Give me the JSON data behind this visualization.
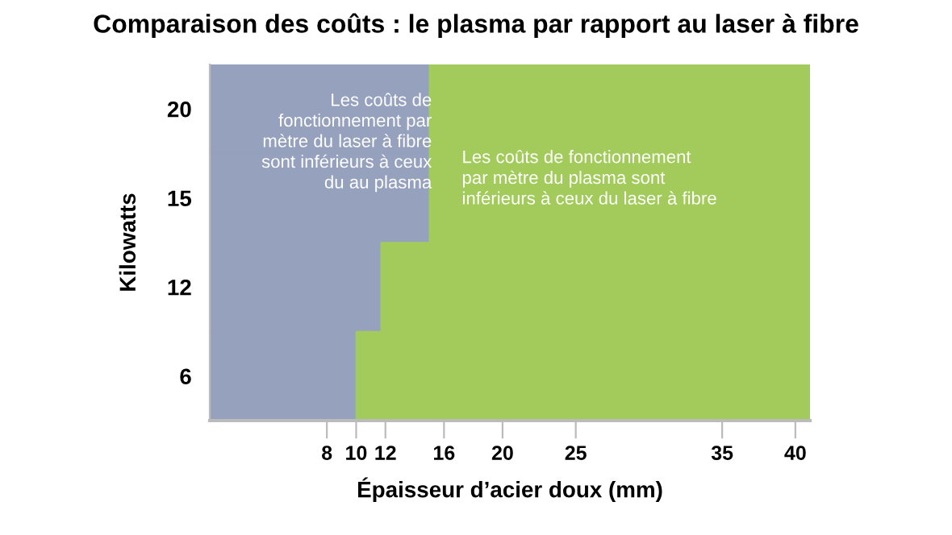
{
  "chart_data": {
    "type": "bar",
    "orientation": "horizontal",
    "stacked": true,
    "title": "Comparaison des coûts : le plasma par rapport au laser à fibre",
    "xlabel": "Épaisseur d’acier doux (mm)",
    "ylabel": "Kilowatts",
    "categories": [
      "20",
      "15",
      "12",
      "6"
    ],
    "series": [
      {
        "color": "#95a1bd",
        "values": [
          15,
          15,
          11.7,
          10
        ]
      },
      {
        "color": "#a2cb5b",
        "values": [
          26,
          26,
          29.3,
          31
        ]
      }
    ],
    "xlim": [
      0,
      41
    ],
    "xticks": [
      8,
      10,
      12,
      16,
      20,
      25,
      35,
      40
    ],
    "annotations": [
      "Les coûts de\nfonctionnement par\nmètre du laser à fibre\nsont inférieurs à ceux\ndu au plasma",
      "Les coûts de fonctionnement\npar mètre du plasma sont\ninférieurs à ceux du laser à fibre"
    ],
    "grid": false,
    "legend": false
  }
}
